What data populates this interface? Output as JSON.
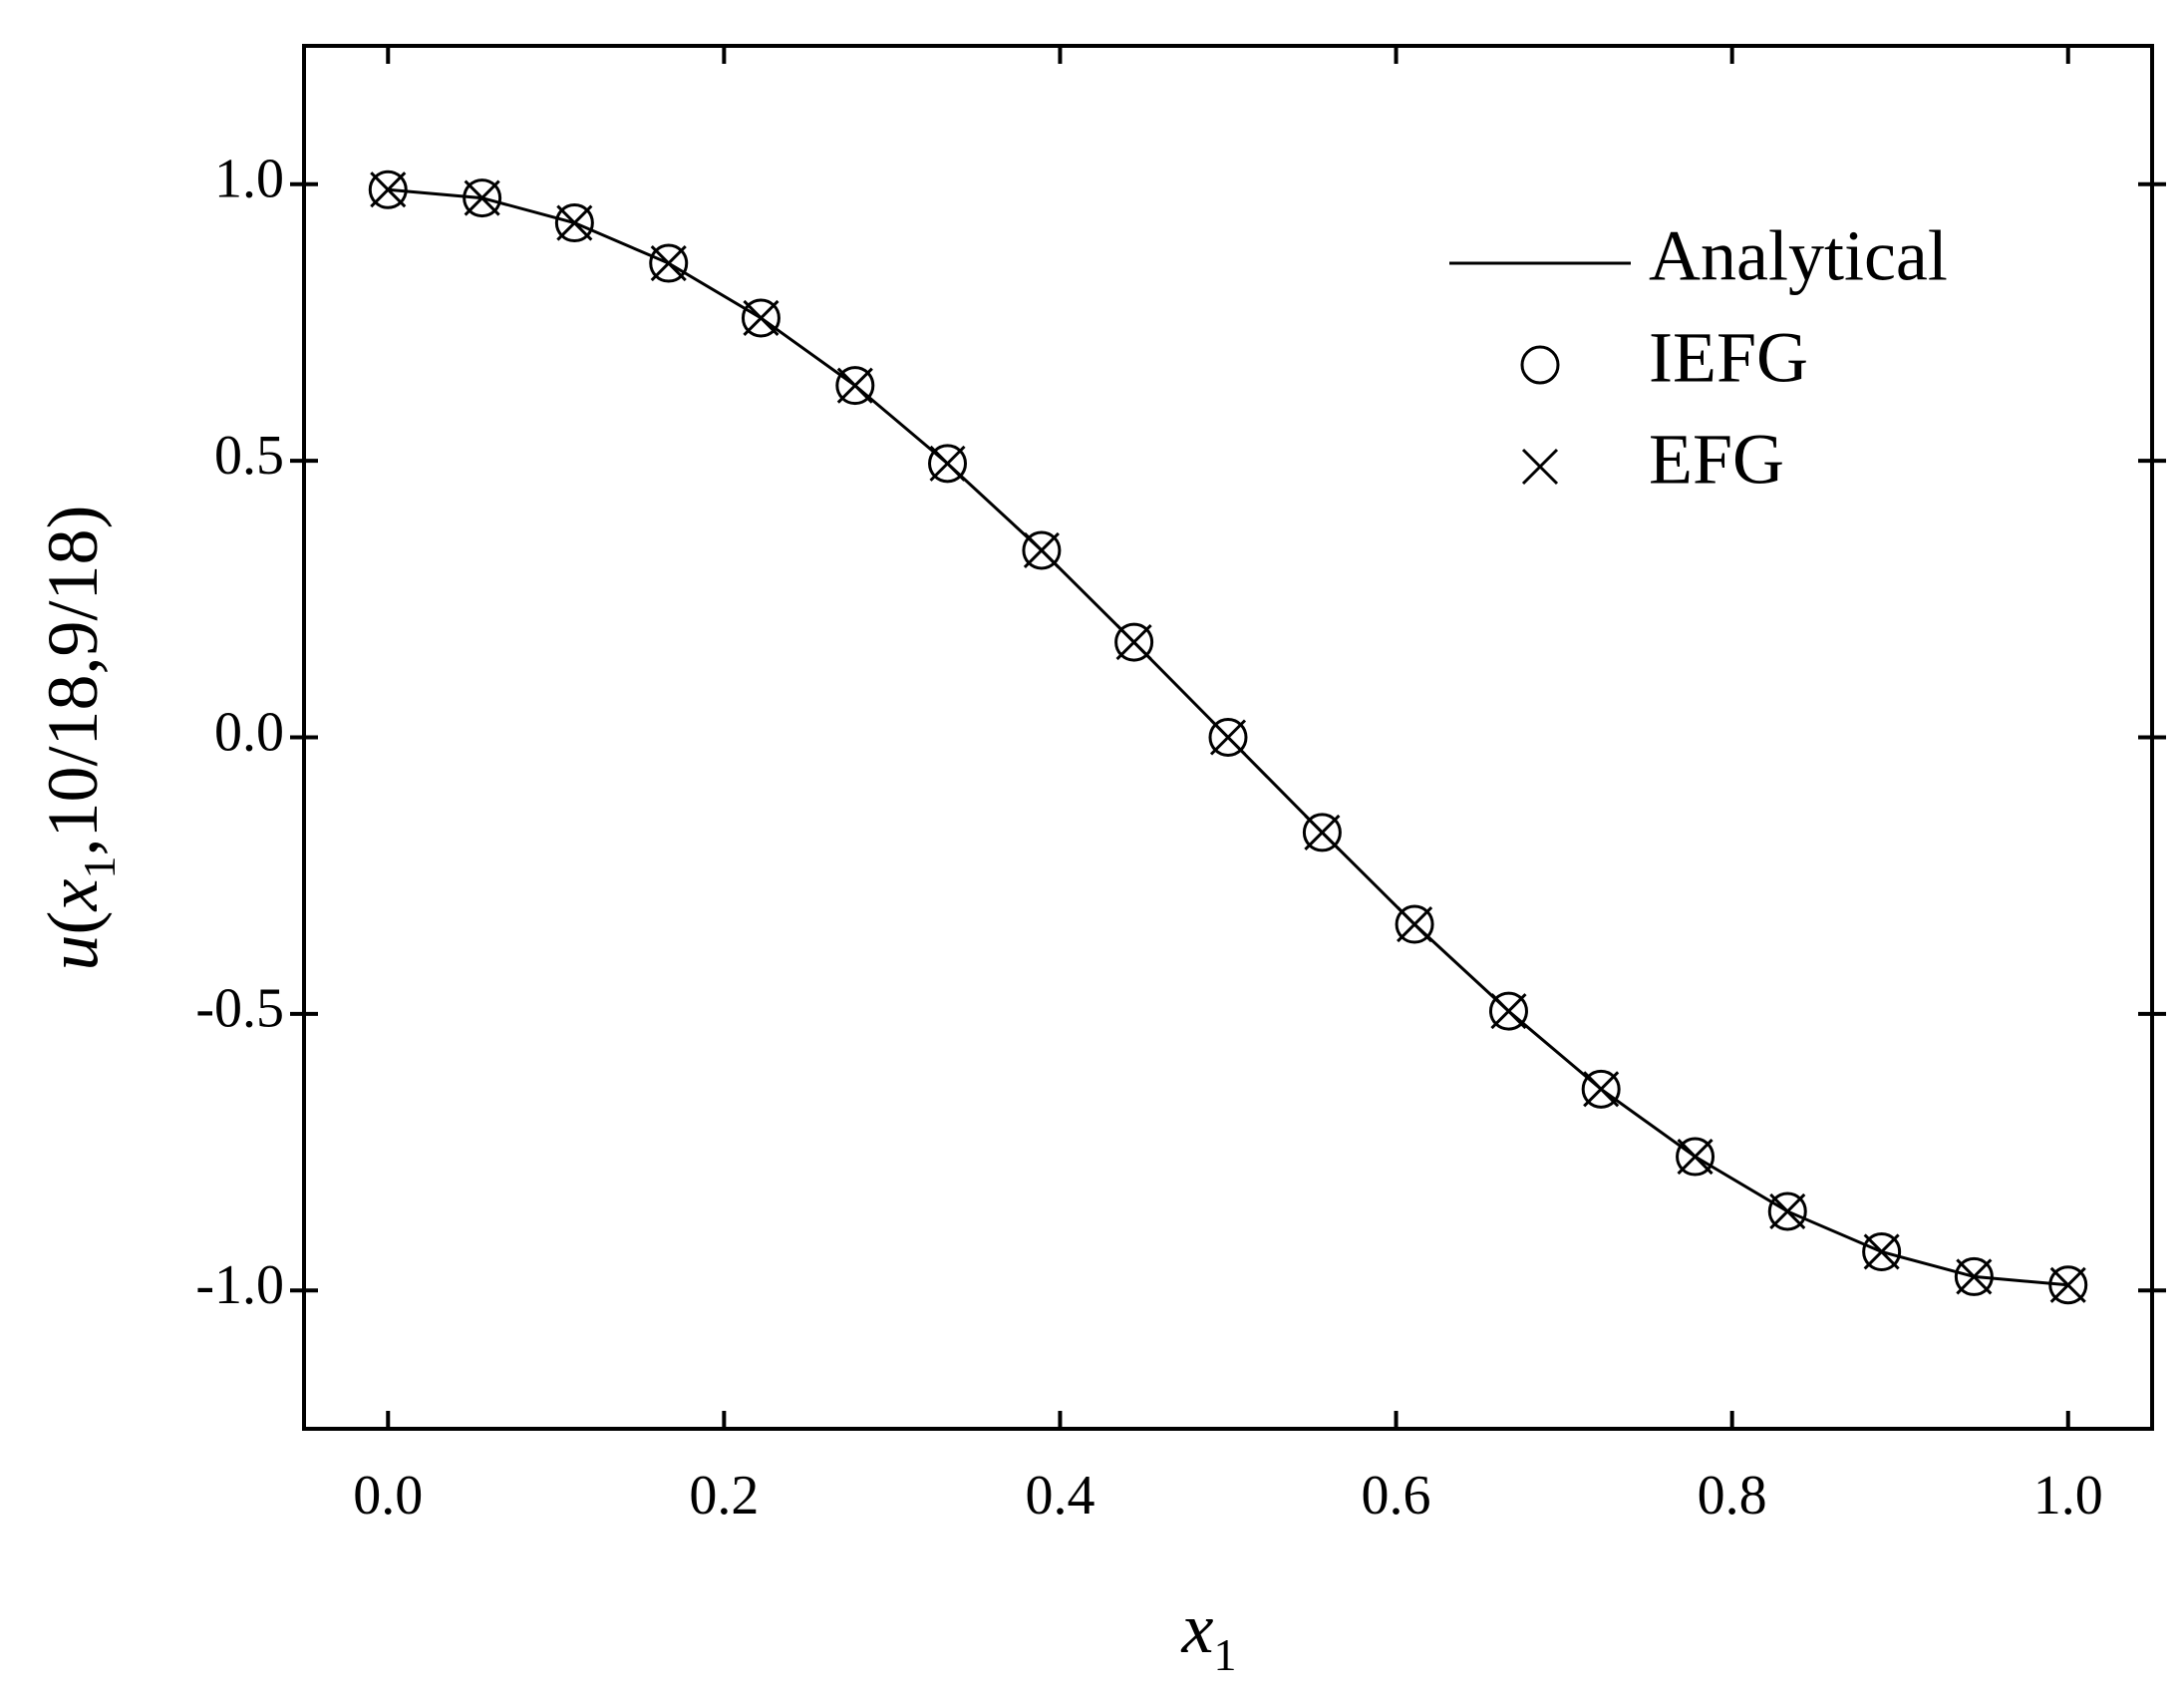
{
  "chart_data": {
    "type": "line",
    "xlabel": [
      "x",
      "1"
    ],
    "ylabel": [
      "u",
      "(",
      "x",
      "1",
      ",10/18,9/18)"
    ],
    "x": [
      0,
      0.056,
      0.111,
      0.167,
      0.222,
      0.278,
      0.333,
      0.389,
      0.444,
      0.5,
      0.556,
      0.611,
      0.667,
      0.722,
      0.778,
      0.833,
      0.889,
      0.944,
      1.0
    ],
    "series": [
      {
        "name": "Analytical",
        "color": "#000000",
        "marker": "none",
        "line": true,
        "values": [
          0.99,
          0.975,
          0.93,
          0.857,
          0.758,
          0.636,
          0.495,
          0.338,
          0.172,
          0,
          -0.172,
          -0.338,
          -0.495,
          -0.636,
          -0.758,
          -0.857,
          -0.93,
          -0.975,
          -0.99
        ]
      },
      {
        "name": "IEFG",
        "color": "#000000",
        "marker": "circle",
        "line": false,
        "values": [
          0.99,
          0.975,
          0.93,
          0.857,
          0.758,
          0.636,
          0.495,
          0.338,
          0.172,
          0,
          -0.172,
          -0.338,
          -0.495,
          -0.636,
          -0.758,
          -0.857,
          -0.93,
          -0.975,
          -0.99
        ]
      },
      {
        "name": "EFG",
        "color": "#000000",
        "marker": "cross",
        "line": false,
        "values": [
          0.99,
          0.975,
          0.93,
          0.857,
          0.758,
          0.636,
          0.495,
          0.338,
          0.172,
          0,
          -0.172,
          -0.338,
          -0.495,
          -0.636,
          -0.758,
          -0.857,
          -0.93,
          -0.975,
          -0.99
        ]
      }
    ],
    "xlim": [
      -0.05,
      1.05
    ],
    "xticks": [
      {
        "value": 0,
        "label": "0.0"
      },
      0.2,
      0.4,
      0.6,
      0.8,
      {
        "value": 1,
        "label": "1.0"
      }
    ],
    "ylim": [
      -1.25,
      1.25
    ],
    "yticks": [
      {
        "value": -1,
        "label": "-1.0"
      },
      -0.5,
      {
        "value": 0,
        "label": "0.0"
      },
      0.5,
      {
        "value": 1,
        "label": "1.0"
      }
    ],
    "grid": false,
    "legend": "upper right"
  }
}
